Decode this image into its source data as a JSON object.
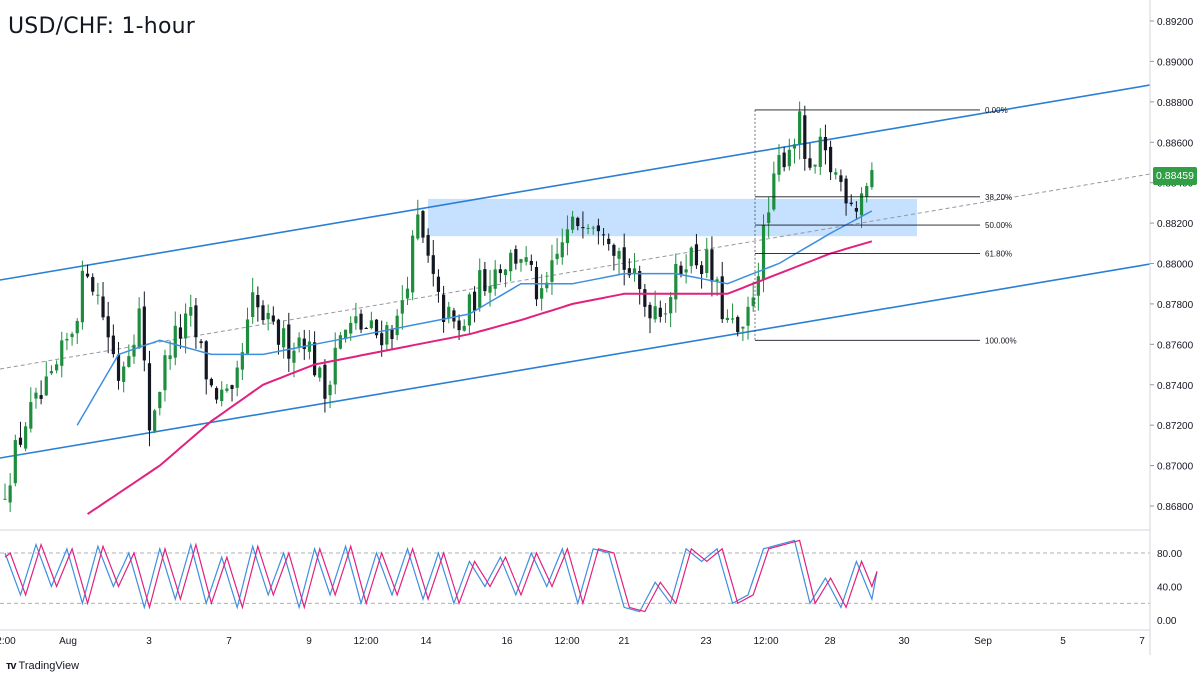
{
  "title": "USD/CHF: 1-hour",
  "brand": "TradingView",
  "last_price": "0.88459",
  "colors": {
    "channel": "#2a7fd4",
    "ma_fast": "#3d8fe0",
    "ma_slow": "#e2217e",
    "up": "#1e8e3e",
    "down": "#131722",
    "zone": "#bcdcff",
    "stoch_k": "#3d8fe0",
    "stoch_d": "#e2217e",
    "price_tag": "#2f9e44"
  },
  "chart_data": [
    {
      "type": "candlestick",
      "title": "USD/CHF: 1-hour",
      "y_ticks": [
        "0.89200",
        "0.89000",
        "0.88800",
        "0.88600",
        "0.88400",
        "0.88200",
        "0.88000",
        "0.87800",
        "0.87600",
        "0.87400",
        "0.87200",
        "0.87000",
        "0.86800"
      ],
      "ylim": [
        0.866,
        0.893
      ],
      "x_ticks": [
        "2:00",
        "Aug",
        "3",
        "7",
        "9",
        "12:00",
        "14",
        "16",
        "12:00",
        "21",
        "23",
        "12:00",
        "28",
        "30",
        "Sep",
        "5",
        "7"
      ],
      "ohlc_anchors": [
        {
          "t": 0,
          "c": 0.869
        },
        {
          "t": 4,
          "c": 0.8722
        },
        {
          "t": 9,
          "c": 0.874
        },
        {
          "t": 13,
          "c": 0.8768
        },
        {
          "t": 16,
          "c": 0.88
        },
        {
          "t": 19,
          "c": 0.8775
        },
        {
          "t": 22,
          "c": 0.8745
        },
        {
          "t": 26,
          "c": 0.8775
        },
        {
          "t": 28,
          "c": 0.872
        },
        {
          "t": 32,
          "c": 0.876
        },
        {
          "t": 36,
          "c": 0.8772
        },
        {
          "t": 40,
          "c": 0.8738
        },
        {
          "t": 44,
          "c": 0.873
        },
        {
          "t": 48,
          "c": 0.878
        },
        {
          "t": 52,
          "c": 0.8765
        },
        {
          "t": 55,
          "c": 0.876
        },
        {
          "t": 58,
          "c": 0.8765
        },
        {
          "t": 62,
          "c": 0.8735
        },
        {
          "t": 64,
          "c": 0.876
        },
        {
          "t": 68,
          "c": 0.877
        },
        {
          "t": 72,
          "c": 0.8765
        },
        {
          "t": 76,
          "c": 0.877
        },
        {
          "t": 80,
          "c": 0.882
        },
        {
          "t": 84,
          "c": 0.878
        },
        {
          "t": 88,
          "c": 0.8765
        },
        {
          "t": 92,
          "c": 0.879
        },
        {
          "t": 96,
          "c": 0.88
        },
        {
          "t": 100,
          "c": 0.8805
        },
        {
          "t": 104,
          "c": 0.878
        },
        {
          "t": 108,
          "c": 0.881
        },
        {
          "t": 112,
          "c": 0.8825
        },
        {
          "t": 116,
          "c": 0.8822
        },
        {
          "t": 120,
          "c": 0.88
        },
        {
          "t": 124,
          "c": 0.878
        },
        {
          "t": 128,
          "c": 0.878
        },
        {
          "t": 132,
          "c": 0.8805
        },
        {
          "t": 136,
          "c": 0.88
        },
        {
          "t": 140,
          "c": 0.877
        },
        {
          "t": 143,
          "c": 0.8762
        },
        {
          "t": 146,
          "c": 0.88
        },
        {
          "t": 150,
          "c": 0.885
        },
        {
          "t": 154,
          "c": 0.8868
        },
        {
          "t": 156,
          "c": 0.884
        },
        {
          "t": 158,
          "c": 0.8855
        },
        {
          "t": 162,
          "c": 0.884
        },
        {
          "t": 165,
          "c": 0.883
        },
        {
          "t": 168,
          "c": 0.8846
        }
      ],
      "candle_count": 169,
      "fib_levels": [
        {
          "label": "0.00%",
          "price": 0.8876
        },
        {
          "label": "38.20%",
          "price": 0.8833
        },
        {
          "label": "50.00%",
          "price": 0.8819
        },
        {
          "label": "61.80%",
          "price": 0.8805
        },
        {
          "label": "100.00%",
          "price": 0.8762
        }
      ],
      "resistance_zone": [
        0.8815,
        0.883
      ],
      "ma_fast_anchors": [
        {
          "t": 14,
          "v": 0.872
        },
        {
          "t": 22,
          "v": 0.8755
        },
        {
          "t": 30,
          "v": 0.8762
        },
        {
          "t": 40,
          "v": 0.8755
        },
        {
          "t": 50,
          "v": 0.8755
        },
        {
          "t": 60,
          "v": 0.876
        },
        {
          "t": 70,
          "v": 0.8765
        },
        {
          "t": 80,
          "v": 0.877
        },
        {
          "t": 90,
          "v": 0.8775
        },
        {
          "t": 100,
          "v": 0.879
        },
        {
          "t": 110,
          "v": 0.879
        },
        {
          "t": 120,
          "v": 0.8795
        },
        {
          "t": 130,
          "v": 0.8795
        },
        {
          "t": 140,
          "v": 0.879
        },
        {
          "t": 150,
          "v": 0.88
        },
        {
          "t": 160,
          "v": 0.8815
        },
        {
          "t": 168,
          "v": 0.8826
        }
      ],
      "ma_slow_anchors": [
        {
          "t": 16,
          "v": 0.8676
        },
        {
          "t": 30,
          "v": 0.87
        },
        {
          "t": 40,
          "v": 0.8722
        },
        {
          "t": 50,
          "v": 0.874
        },
        {
          "t": 60,
          "v": 0.875
        },
        {
          "t": 70,
          "v": 0.8755
        },
        {
          "t": 80,
          "v": 0.876
        },
        {
          "t": 90,
          "v": 0.8765
        },
        {
          "t": 100,
          "v": 0.8772
        },
        {
          "t": 110,
          "v": 0.878
        },
        {
          "t": 120,
          "v": 0.8785
        },
        {
          "t": 130,
          "v": 0.8785
        },
        {
          "t": 140,
          "v": 0.8785
        },
        {
          "t": 150,
          "v": 0.8795
        },
        {
          "t": 160,
          "v": 0.8805
        },
        {
          "t": 168,
          "v": 0.8811
        }
      ]
    },
    {
      "type": "line",
      "y_ticks": [
        "80.00",
        "40.00",
        "0.00"
      ],
      "ylim": [
        0,
        100
      ],
      "reference_lines": [
        80,
        20
      ],
      "stoch_k_anchors": [
        {
          "t": 0,
          "v": 80
        },
        {
          "t": 3,
          "v": 30
        },
        {
          "t": 6,
          "v": 90
        },
        {
          "t": 9,
          "v": 40
        },
        {
          "t": 12,
          "v": 85
        },
        {
          "t": 15,
          "v": 20
        },
        {
          "t": 18,
          "v": 88
        },
        {
          "t": 21,
          "v": 40
        },
        {
          "t": 24,
          "v": 80
        },
        {
          "t": 27,
          "v": 15
        },
        {
          "t": 30,
          "v": 85
        },
        {
          "t": 33,
          "v": 25
        },
        {
          "t": 36,
          "v": 90
        },
        {
          "t": 39,
          "v": 20
        },
        {
          "t": 42,
          "v": 75
        },
        {
          "t": 45,
          "v": 15
        },
        {
          "t": 48,
          "v": 88
        },
        {
          "t": 51,
          "v": 30
        },
        {
          "t": 54,
          "v": 80
        },
        {
          "t": 57,
          "v": 15
        },
        {
          "t": 60,
          "v": 85
        },
        {
          "t": 63,
          "v": 30
        },
        {
          "t": 66,
          "v": 88
        },
        {
          "t": 69,
          "v": 20
        },
        {
          "t": 72,
          "v": 80
        },
        {
          "t": 75,
          "v": 30
        },
        {
          "t": 78,
          "v": 85
        },
        {
          "t": 81,
          "v": 25
        },
        {
          "t": 84,
          "v": 80
        },
        {
          "t": 87,
          "v": 20
        },
        {
          "t": 90,
          "v": 70
        },
        {
          "t": 93,
          "v": 40
        },
        {
          "t": 96,
          "v": 75
        },
        {
          "t": 99,
          "v": 30
        },
        {
          "t": 102,
          "v": 80
        },
        {
          "t": 105,
          "v": 40
        },
        {
          "t": 108,
          "v": 85
        },
        {
          "t": 111,
          "v": 20
        },
        {
          "t": 114,
          "v": 85
        },
        {
          "t": 117,
          "v": 80
        },
        {
          "t": 120,
          "v": 15
        },
        {
          "t": 123,
          "v": 10
        },
        {
          "t": 126,
          "v": 45
        },
        {
          "t": 129,
          "v": 20
        },
        {
          "t": 132,
          "v": 85
        },
        {
          "t": 135,
          "v": 70
        },
        {
          "t": 138,
          "v": 85
        },
        {
          "t": 141,
          "v": 20
        },
        {
          "t": 144,
          "v": 30
        },
        {
          "t": 147,
          "v": 85
        },
        {
          "t": 150,
          "v": 90
        },
        {
          "t": 153,
          "v": 95
        },
        {
          "t": 156,
          "v": 20
        },
        {
          "t": 159,
          "v": 50
        },
        {
          "t": 162,
          "v": 15
        },
        {
          "t": 165,
          "v": 70
        },
        {
          "t": 168,
          "v": 25
        },
        {
          "t": 169,
          "v": 58
        }
      ]
    }
  ]
}
